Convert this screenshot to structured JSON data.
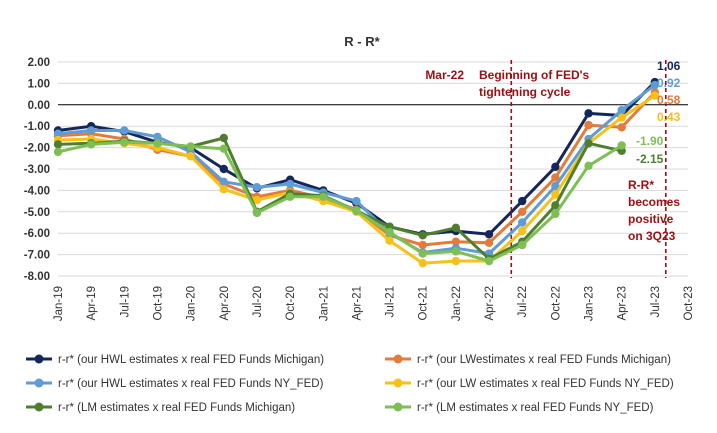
{
  "chart_data": {
    "type": "line",
    "title": "R - R*",
    "xlabel": "",
    "ylabel": "",
    "ylim": [
      -8,
      2
    ],
    "y_ticks": [
      "2.00",
      "1.00",
      "0.00",
      "-1.00",
      "-2.00",
      "-3.00",
      "-4.00",
      "-5.00",
      "-6.00",
      "-7.00",
      "-8.00"
    ],
    "categories": [
      "Jan-19",
      "Apr-19",
      "Jul-19",
      "Oct-19",
      "Jan-20",
      "Apr-20",
      "Jul-20",
      "Oct-20",
      "Jan-21",
      "Apr-21",
      "Jul-21",
      "Oct-21",
      "Jan-22",
      "Apr-22",
      "Jul-22",
      "Oct-22",
      "Jan-23",
      "Apr-23",
      "Jul-23",
      "Oct-23"
    ],
    "grid": true,
    "legend_position": "bottom",
    "series": [
      {
        "name": "r-r* (our HWL estimates x real FED Funds Michigan)",
        "color": "#14275a",
        "values": [
          -1.2,
          -1.0,
          -1.25,
          -1.75,
          -2.0,
          -3.0,
          -3.9,
          -3.5,
          -4.0,
          -4.6,
          -5.7,
          -6.05,
          -5.9,
          -6.05,
          -4.5,
          -2.9,
          -0.4,
          -0.5,
          1.06,
          null
        ]
      },
      {
        "name": "r-r* (our LWestimates x real FED Funds Michigan)",
        "color": "#e57b3b",
        "values": [
          -1.45,
          -1.35,
          -1.6,
          -2.1,
          -2.4,
          -3.7,
          -4.3,
          -4.0,
          -4.35,
          -4.9,
          -6.1,
          -6.55,
          -6.4,
          -6.45,
          -5.0,
          -3.4,
          -0.95,
          -1.05,
          0.58,
          null
        ]
      },
      {
        "name": "r-r* (our HWL estimates x real FED Funds NY_FED)",
        "color": "#5f9bd5",
        "values": [
          -1.35,
          -1.2,
          -1.2,
          -1.5,
          -2.2,
          -3.6,
          -3.85,
          -3.7,
          -4.1,
          -4.5,
          -6.0,
          -6.9,
          -6.7,
          -6.95,
          -5.5,
          -3.8,
          -1.6,
          -0.25,
          0.92,
          null
        ]
      },
      {
        "name": "r-r* (our LW estimates x real FED Funds NY_FED)",
        "color": "#f7c11a",
        "values": [
          -1.65,
          -1.6,
          -1.8,
          -2.0,
          -2.4,
          -3.95,
          -4.45,
          -4.1,
          -4.5,
          -5.0,
          -6.35,
          -7.4,
          -7.3,
          -7.3,
          -5.9,
          -4.2,
          -1.8,
          -0.6,
          0.43,
          null
        ]
      },
      {
        "name": "r-r* (LM estimates x real FED Funds Michigan)",
        "color": "#4f7f2e",
        "values": [
          -1.85,
          -1.8,
          -1.7,
          -1.8,
          -1.95,
          -1.55,
          -5.0,
          -4.15,
          -4.25,
          -4.95,
          -5.7,
          -6.1,
          -5.75,
          -7.2,
          -6.4,
          -4.7,
          -1.8,
          -2.15,
          null,
          null
        ]
      },
      {
        "name": "r-r* (LM estimates x real FED Funds NY_FED)",
        "color": "#7ebf55",
        "values": [
          -2.2,
          -1.85,
          -1.75,
          -1.8,
          -1.95,
          -2.05,
          -5.05,
          -4.3,
          -4.3,
          -4.95,
          -5.95,
          -6.95,
          -6.85,
          -7.3,
          -6.55,
          -5.1,
          -2.85,
          -1.9,
          null,
          null
        ]
      }
    ],
    "end_labels": [
      {
        "text": "1.06",
        "color": "#14275a",
        "value": 1.06
      },
      {
        "text": "0.92",
        "color": "#5f9bd5",
        "value": 0.92
      },
      {
        "text": "0.58",
        "color": "#e57b3b",
        "value": 0.58
      },
      {
        "text": "0.43",
        "color": "#f7c11a",
        "value": 0.43
      },
      {
        "text": "-1.90",
        "color": "#7ebf55",
        "value": -1.9
      },
      {
        "text": "-2.15",
        "color": "#4f7f2e",
        "value": -2.15
      }
    ],
    "annotations": {
      "mar22": "Mar-22",
      "beginning_line1": "Beginning of FED's",
      "beginning_line2": "tightening cycle",
      "positive_line1": "R-R*",
      "positive_line2": "becomes",
      "positive_line3": "positive",
      "positive_line4": "on 3Q23",
      "annotation_color": "#9b0f13"
    },
    "vlines": [
      {
        "at_category_index": 13.67,
        "label": "Mar-22"
      },
      {
        "at_category_index": 18.33,
        "label": "3Q23"
      }
    ]
  }
}
